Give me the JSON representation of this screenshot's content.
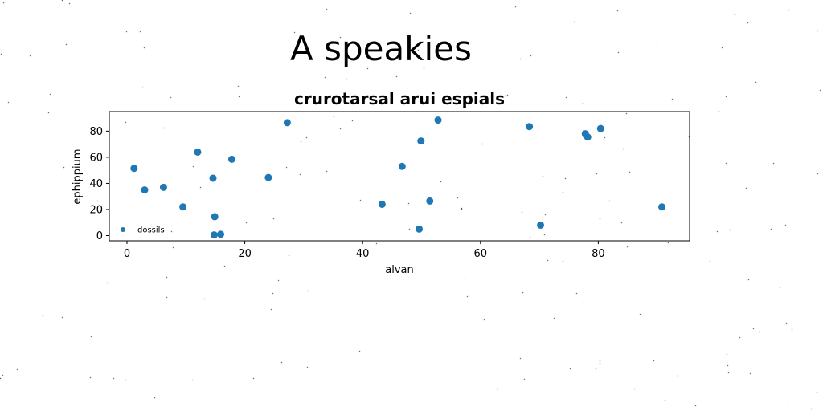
{
  "figure": {
    "suptitle": "A speakies"
  },
  "chart_data": {
    "type": "scatter",
    "title": "crurotarsal arui espials",
    "xlabel": "alvan",
    "ylabel": "ephippium",
    "xlim": [
      -3,
      95.5
    ],
    "ylim": [
      -4,
      95
    ],
    "xticks": [
      0,
      20,
      40,
      60,
      80
    ],
    "yticks": [
      0,
      20,
      40,
      60,
      80
    ],
    "grid": false,
    "legend": {
      "placement": "lower-left"
    },
    "series": [
      {
        "name": "dossils",
        "color": "#1f77b4",
        "points": [
          {
            "x": 1.2,
            "y": 51.5
          },
          {
            "x": 3.0,
            "y": 35.0
          },
          {
            "x": 6.2,
            "y": 37.0
          },
          {
            "x": 9.5,
            "y": 22.0
          },
          {
            "x": 12.0,
            "y": 64.0
          },
          {
            "x": 14.6,
            "y": 44.0
          },
          {
            "x": 14.8,
            "y": 0.5
          },
          {
            "x": 14.9,
            "y": 14.5
          },
          {
            "x": 15.9,
            "y": 1.0
          },
          {
            "x": 17.8,
            "y": 58.5
          },
          {
            "x": 24.0,
            "y": 44.5
          },
          {
            "x": 27.2,
            "y": 86.5
          },
          {
            "x": 43.3,
            "y": 24.0
          },
          {
            "x": 46.7,
            "y": 53.0
          },
          {
            "x": 49.6,
            "y": 5.0
          },
          {
            "x": 49.9,
            "y": 72.5
          },
          {
            "x": 51.4,
            "y": 26.5
          },
          {
            "x": 52.8,
            "y": 88.5
          },
          {
            "x": 68.3,
            "y": 83.5
          },
          {
            "x": 70.2,
            "y": 8.0
          },
          {
            "x": 77.8,
            "y": 78.0
          },
          {
            "x": 78.2,
            "y": 75.5
          },
          {
            "x": 80.4,
            "y": 82.0
          },
          {
            "x": 90.8,
            "y": 22.0
          }
        ]
      }
    ]
  }
}
